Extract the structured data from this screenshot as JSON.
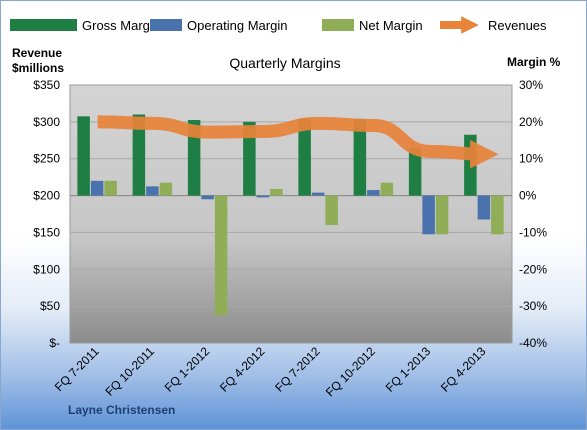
{
  "chart_data": {
    "type": "bar",
    "title": "Quarterly Margins",
    "categories": [
      "FQ 7-2011",
      "FQ 10-2011",
      "FQ 1-2012",
      "FQ 4-2012",
      "FQ 7-2012",
      "FQ 10-2012",
      "FQ 1-2013",
      "FQ 4-2013"
    ],
    "series": [
      {
        "name": "Gross Margin",
        "axis": "right",
        "values": [
          21.5,
          22.0,
          20.5,
          20.0,
          20.8,
          20.8,
          13.0,
          16.5
        ]
      },
      {
        "name": "Operating Margin",
        "axis": "right",
        "values": [
          4.0,
          2.5,
          -1.0,
          -0.5,
          0.8,
          1.5,
          -10.5,
          -6.5
        ]
      },
      {
        "name": "Net Margin",
        "axis": "right",
        "values": [
          4.0,
          3.5,
          -32.5,
          1.8,
          -8.0,
          3.5,
          -10.5,
          -10.5
        ]
      },
      {
        "name": "Revenues",
        "axis": "left",
        "type": "line",
        "values": [
          300,
          298,
          286,
          287,
          298,
          295,
          260,
          256
        ]
      }
    ],
    "ylabel": "Revenue\n$millions",
    "ylabel_right": "Margin %",
    "ylim": [
      0,
      350
    ],
    "ylim_right": [
      -40,
      30
    ],
    "yticks": [
      "$-",
      "$50",
      "$100",
      "$150",
      "$200",
      "$250",
      "$300",
      "$350"
    ],
    "yticks_right": [
      "-40%",
      "-30%",
      "-20%",
      "-10%",
      "0%",
      "10%",
      "20%",
      "30%"
    ],
    "legend_position": "top",
    "grid": true,
    "annotation": "Layne Christensen",
    "colors": {
      "Gross Margin": "#1e7e43",
      "Operating Margin": "#4a73ad",
      "Net Margin": "#8fae57",
      "Revenues": "#e8833a"
    }
  }
}
